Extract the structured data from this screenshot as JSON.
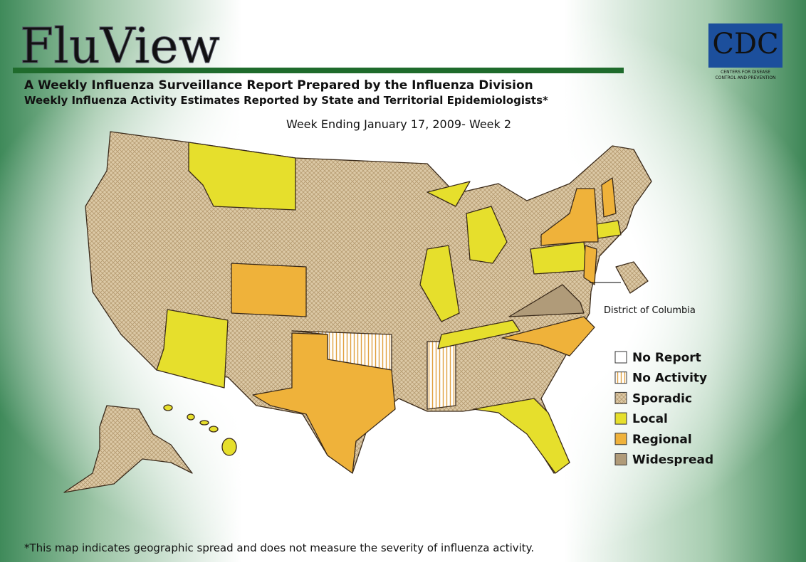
{
  "header": {
    "title": "FluView",
    "subtitle": "A Weekly Influenza Surveillance Report Prepared by the Influenza Division",
    "line2": "Weekly Influenza Activity Estimates Reported by State and Territorial Epidemiologists*",
    "week": "Week Ending January 17, 2009- Week  2"
  },
  "logo": {
    "text": "CDC",
    "tagline_1": "CENTERS FOR DISEASE",
    "tagline_2": "CONTROL AND PREVENTION"
  },
  "map": {
    "dc_label": "District of Columbia"
  },
  "legend": [
    {
      "label": "No Report",
      "color": "#ffffff"
    },
    {
      "label": "No Activity",
      "color": "url(#vstripe)"
    },
    {
      "label": "Sporadic",
      "color": "url(#cross)"
    },
    {
      "label": "Local",
      "color": "#e6df2c"
    },
    {
      "label": "Regional",
      "color": "#efb23a"
    },
    {
      "label": "Widespread",
      "color": "#b09b79"
    }
  ],
  "footnote": "*This map indicates geographic spread and does not measure the severity of influenza activity."
}
